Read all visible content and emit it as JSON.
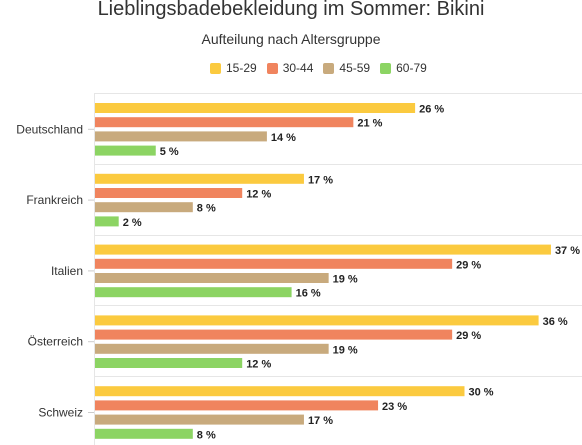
{
  "chart_data": {
    "type": "bar",
    "orientation": "horizontal",
    "title": "Lieblingsbadebekleidung im Sommer: Bikini",
    "subtitle": "Aufteilung nach Altersgruppe",
    "categories": [
      "Deutschland",
      "Frankreich",
      "Italien",
      "Österreich",
      "Schweiz"
    ],
    "series": [
      {
        "name": "15-29",
        "color": "#fbca3f",
        "values": [
          26,
          17,
          37,
          36,
          30
        ]
      },
      {
        "name": "30-44",
        "color": "#f0845e",
        "values": [
          21,
          12,
          29,
          29,
          23
        ]
      },
      {
        "name": "45-59",
        "color": "#c8aa7d",
        "values": [
          14,
          8,
          19,
          19,
          17
        ]
      },
      {
        "name": "60-79",
        "color": "#8cd463",
        "values": [
          5,
          2,
          16,
          12,
          8
        ]
      }
    ],
    "value_suffix": " %",
    "xlim": [
      0,
      37
    ],
    "legend_position": "top",
    "grid": true
  }
}
